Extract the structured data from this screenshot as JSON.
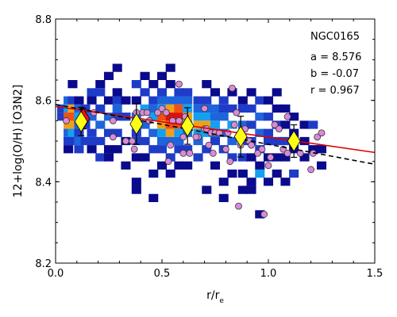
{
  "chart_data": {
    "type": "scatter",
    "xlabel": "r/r",
    "xlabel_sub": "e",
    "ylabel": "12+log(O/H) [O3N2]",
    "xlim": [
      0.0,
      1.5
    ],
    "ylim": [
      8.2,
      8.8
    ],
    "x_ticks": [
      "0.0",
      "0.5",
      "1.0",
      "1.5"
    ],
    "y_ticks": [
      "8.2",
      "8.4",
      "8.6",
      "8.8"
    ],
    "annotations": [
      "NGC0165",
      "a = 8.576",
      "b = -0.07",
      "r = 0.967"
    ],
    "density_cells": [
      [
        0.03,
        8.58,
        2
      ],
      [
        0.03,
        8.56,
        2
      ],
      [
        0.06,
        8.6,
        3
      ],
      [
        0.06,
        8.58,
        4
      ],
      [
        0.06,
        8.56,
        6
      ],
      [
        0.06,
        8.54,
        5
      ],
      [
        0.06,
        8.52,
        3
      ],
      [
        0.06,
        8.5,
        2
      ],
      [
        0.06,
        8.48,
        1
      ],
      [
        0.08,
        8.64,
        1
      ],
      [
        0.08,
        8.6,
        2
      ],
      [
        0.08,
        8.58,
        5
      ],
      [
        0.08,
        8.56,
        6
      ],
      [
        0.08,
        8.54,
        5
      ],
      [
        0.08,
        8.52,
        4
      ],
      [
        0.08,
        8.5,
        2
      ],
      [
        0.11,
        8.6,
        1
      ],
      [
        0.11,
        8.58,
        3
      ],
      [
        0.11,
        8.56,
        4
      ],
      [
        0.11,
        8.54,
        3
      ],
      [
        0.11,
        8.52,
        2
      ],
      [
        0.11,
        8.5,
        3
      ],
      [
        0.11,
        8.48,
        2
      ],
      [
        0.14,
        8.58,
        2
      ],
      [
        0.14,
        8.56,
        3
      ],
      [
        0.14,
        8.54,
        2
      ],
      [
        0.14,
        8.5,
        2
      ],
      [
        0.17,
        8.62,
        2
      ],
      [
        0.17,
        8.6,
        1
      ],
      [
        0.17,
        8.56,
        3
      ],
      [
        0.17,
        8.52,
        2
      ],
      [
        0.17,
        8.5,
        2
      ],
      [
        0.17,
        8.48,
        1
      ],
      [
        0.21,
        8.64,
        1
      ],
      [
        0.21,
        8.62,
        2
      ],
      [
        0.21,
        8.58,
        2
      ],
      [
        0.21,
        8.54,
        3
      ],
      [
        0.21,
        8.5,
        2
      ],
      [
        0.21,
        8.46,
        2
      ],
      [
        0.25,
        8.66,
        1
      ],
      [
        0.25,
        8.6,
        1
      ],
      [
        0.25,
        8.56,
        3
      ],
      [
        0.25,
        8.52,
        2
      ],
      [
        0.25,
        8.48,
        1
      ],
      [
        0.25,
        8.46,
        1
      ],
      [
        0.29,
        8.68,
        1
      ],
      [
        0.29,
        8.62,
        1
      ],
      [
        0.29,
        8.6,
        2
      ],
      [
        0.29,
        8.58,
        3
      ],
      [
        0.29,
        8.56,
        2
      ],
      [
        0.29,
        8.52,
        2
      ],
      [
        0.29,
        8.48,
        1
      ],
      [
        0.33,
        8.6,
        1
      ],
      [
        0.33,
        8.56,
        2
      ],
      [
        0.33,
        8.5,
        1
      ],
      [
        0.33,
        8.44,
        1
      ],
      [
        0.38,
        8.64,
        2
      ],
      [
        0.38,
        8.6,
        1
      ],
      [
        0.38,
        8.56,
        3
      ],
      [
        0.38,
        8.52,
        2
      ],
      [
        0.38,
        8.5,
        2
      ],
      [
        0.38,
        8.46,
        1
      ],
      [
        0.38,
        8.4,
        1
      ],
      [
        0.38,
        8.38,
        1
      ],
      [
        0.42,
        8.66,
        1
      ],
      [
        0.42,
        8.62,
        2
      ],
      [
        0.42,
        8.58,
        4
      ],
      [
        0.42,
        8.54,
        3
      ],
      [
        0.42,
        8.5,
        2
      ],
      [
        0.42,
        8.46,
        1
      ],
      [
        0.46,
        8.64,
        1
      ],
      [
        0.46,
        8.6,
        2
      ],
      [
        0.46,
        8.58,
        3
      ],
      [
        0.46,
        8.56,
        4
      ],
      [
        0.46,
        8.52,
        3
      ],
      [
        0.46,
        8.48,
        2
      ],
      [
        0.46,
        8.42,
        1
      ],
      [
        0.46,
        8.36,
        1
      ],
      [
        0.5,
        8.66,
        1
      ],
      [
        0.5,
        8.62,
        2
      ],
      [
        0.5,
        8.6,
        3
      ],
      [
        0.5,
        8.58,
        4
      ],
      [
        0.5,
        8.56,
        6
      ],
      [
        0.5,
        8.54,
        5
      ],
      [
        0.5,
        8.52,
        4
      ],
      [
        0.5,
        8.5,
        3
      ],
      [
        0.5,
        8.48,
        2
      ],
      [
        0.5,
        8.44,
        1
      ],
      [
        0.54,
        8.68,
        1
      ],
      [
        0.54,
        8.64,
        1
      ],
      [
        0.54,
        8.6,
        3
      ],
      [
        0.54,
        8.58,
        5
      ],
      [
        0.54,
        8.56,
        7
      ],
      [
        0.54,
        8.54,
        6
      ],
      [
        0.54,
        8.52,
        5
      ],
      [
        0.54,
        8.5,
        3
      ],
      [
        0.54,
        8.46,
        2
      ],
      [
        0.54,
        8.42,
        1
      ],
      [
        0.58,
        8.62,
        2
      ],
      [
        0.58,
        8.6,
        3
      ],
      [
        0.58,
        8.58,
        6
      ],
      [
        0.58,
        8.56,
        7
      ],
      [
        0.58,
        8.54,
        6
      ],
      [
        0.58,
        8.52,
        4
      ],
      [
        0.58,
        8.5,
        3
      ],
      [
        0.58,
        8.48,
        2
      ],
      [
        0.58,
        8.44,
        1
      ],
      [
        0.62,
        8.62,
        2
      ],
      [
        0.62,
        8.6,
        3
      ],
      [
        0.62,
        8.58,
        4
      ],
      [
        0.62,
        8.56,
        5
      ],
      [
        0.62,
        8.54,
        4
      ],
      [
        0.62,
        8.52,
        3
      ],
      [
        0.62,
        8.48,
        2
      ],
      [
        0.62,
        8.44,
        1
      ],
      [
        0.67,
        8.6,
        2
      ],
      [
        0.67,
        8.58,
        3
      ],
      [
        0.67,
        8.56,
        4
      ],
      [
        0.67,
        8.54,
        5
      ],
      [
        0.67,
        8.52,
        4
      ],
      [
        0.67,
        8.5,
        3
      ],
      [
        0.67,
        8.46,
        2
      ],
      [
        0.71,
        8.64,
        1
      ],
      [
        0.71,
        8.6,
        2
      ],
      [
        0.71,
        8.58,
        3
      ],
      [
        0.71,
        8.56,
        4
      ],
      [
        0.71,
        8.54,
        5
      ],
      [
        0.71,
        8.52,
        4
      ],
      [
        0.71,
        8.48,
        2
      ],
      [
        0.71,
        8.38,
        1
      ],
      [
        0.75,
        8.62,
        1
      ],
      [
        0.75,
        8.58,
        3
      ],
      [
        0.75,
        8.56,
        3
      ],
      [
        0.75,
        8.54,
        4
      ],
      [
        0.75,
        8.52,
        3
      ],
      [
        0.75,
        8.5,
        2
      ],
      [
        0.75,
        8.44,
        1
      ],
      [
        0.79,
        8.6,
        2
      ],
      [
        0.79,
        8.58,
        2
      ],
      [
        0.79,
        8.56,
        3
      ],
      [
        0.79,
        8.52,
        3
      ],
      [
        0.79,
        8.48,
        2
      ],
      [
        0.79,
        8.4,
        1
      ],
      [
        0.79,
        8.36,
        1
      ],
      [
        0.83,
        8.62,
        1
      ],
      [
        0.83,
        8.58,
        2
      ],
      [
        0.83,
        8.54,
        4
      ],
      [
        0.83,
        8.5,
        3
      ],
      [
        0.83,
        8.46,
        2
      ],
      [
        0.83,
        8.42,
        1
      ],
      [
        0.88,
        8.6,
        1
      ],
      [
        0.88,
        8.58,
        2
      ],
      [
        0.88,
        8.54,
        3
      ],
      [
        0.88,
        8.5,
        2
      ],
      [
        0.88,
        8.46,
        2
      ],
      [
        0.88,
        8.42,
        1
      ],
      [
        0.88,
        8.38,
        1
      ],
      [
        0.92,
        8.62,
        1
      ],
      [
        0.92,
        8.58,
        2
      ],
      [
        0.92,
        8.54,
        2
      ],
      [
        0.92,
        8.5,
        2
      ],
      [
        0.92,
        8.46,
        1
      ],
      [
        0.92,
        8.4,
        1
      ],
      [
        0.92,
        8.38,
        1
      ],
      [
        0.96,
        8.6,
        2
      ],
      [
        0.96,
        8.56,
        3
      ],
      [
        0.96,
        8.52,
        3
      ],
      [
        0.96,
        8.48,
        2
      ],
      [
        0.96,
        8.44,
        1
      ],
      [
        0.96,
        8.42,
        4
      ],
      [
        0.96,
        8.32,
        1
      ],
      [
        1.0,
        8.6,
        1
      ],
      [
        1.0,
        8.56,
        2
      ],
      [
        1.0,
        8.52,
        2
      ],
      [
        1.0,
        8.5,
        2
      ],
      [
        1.0,
        8.46,
        1
      ],
      [
        1.0,
        8.4,
        1
      ],
      [
        1.04,
        8.62,
        1
      ],
      [
        1.04,
        8.58,
        1
      ],
      [
        1.04,
        8.54,
        2
      ],
      [
        1.04,
        8.5,
        2
      ],
      [
        1.04,
        8.46,
        1
      ],
      [
        1.04,
        8.42,
        1
      ],
      [
        1.08,
        8.58,
        1
      ],
      [
        1.08,
        8.54,
        1
      ],
      [
        1.08,
        8.5,
        2
      ],
      [
        1.08,
        8.46,
        1
      ],
      [
        1.08,
        8.4,
        1
      ],
      [
        1.12,
        8.56,
        1
      ],
      [
        1.12,
        8.52,
        1
      ],
      [
        1.12,
        8.48,
        1
      ],
      [
        1.12,
        8.42,
        2
      ],
      [
        1.17,
        8.54,
        1
      ],
      [
        1.17,
        8.5,
        1
      ],
      [
        1.17,
        8.46,
        1
      ],
      [
        1.21,
        8.54,
        2
      ],
      [
        1.21,
        8.48,
        1
      ],
      [
        1.25,
        8.48,
        1
      ],
      [
        1.25,
        8.44,
        1
      ]
    ],
    "points": [
      [
        0.05,
        8.55
      ],
      [
        0.18,
        8.57
      ],
      [
        0.27,
        8.55
      ],
      [
        0.27,
        8.51
      ],
      [
        0.36,
        8.5
      ],
      [
        0.37,
        8.48
      ],
      [
        0.41,
        8.57
      ],
      [
        0.43,
        8.57
      ],
      [
        0.44,
        8.55
      ],
      [
        0.48,
        8.57
      ],
      [
        0.5,
        8.58
      ],
      [
        0.52,
        8.57
      ],
      [
        0.53,
        8.45
      ],
      [
        0.54,
        8.49
      ],
      [
        0.55,
        8.55
      ],
      [
        0.58,
        8.64
      ],
      [
        0.58,
        8.55
      ],
      [
        0.6,
        8.51
      ],
      [
        0.61,
        8.56
      ],
      [
        0.63,
        8.47
      ],
      [
        0.67,
        8.51
      ],
      [
        0.7,
        8.58
      ],
      [
        0.7,
        8.53
      ],
      [
        0.71,
        8.53
      ],
      [
        0.72,
        8.49
      ],
      [
        0.73,
        8.52
      ],
      [
        0.74,
        8.47
      ],
      [
        0.75,
        8.52
      ],
      [
        0.77,
        8.52
      ],
      [
        0.8,
        8.48
      ],
      [
        0.82,
        8.45
      ],
      [
        0.83,
        8.63
      ],
      [
        0.84,
        8.54
      ],
      [
        0.85,
        8.57
      ],
      [
        0.86,
        8.34
      ],
      [
        0.87,
        8.49
      ],
      [
        0.89,
        8.53
      ],
      [
        0.91,
        8.5
      ],
      [
        0.92,
        8.49
      ],
      [
        0.95,
        8.47
      ],
      [
        0.97,
        8.48
      ],
      [
        0.98,
        8.32
      ],
      [
        1.0,
        8.44
      ],
      [
        1.01,
        8.46
      ],
      [
        1.03,
        8.54
      ],
      [
        1.05,
        8.53
      ],
      [
        1.07,
        8.48
      ],
      [
        1.09,
        8.56
      ],
      [
        1.09,
        8.47
      ],
      [
        1.15,
        8.47
      ],
      [
        1.2,
        8.43
      ],
      [
        1.21,
        8.47
      ],
      [
        1.23,
        8.51
      ],
      [
        1.25,
        8.52
      ],
      [
        0.6,
        8.47
      ],
      [
        0.66,
        8.51
      ],
      [
        0.81,
        8.52
      ],
      [
        0.33,
        8.5
      ],
      [
        0.38,
        8.57
      ]
    ],
    "red_bins": [
      [
        0.13,
        8.555,
        0.025
      ]
    ],
    "yellow_bins": [
      [
        0.12,
        8.548,
        0.035
      ],
      [
        0.38,
        8.542,
        0.05
      ],
      [
        0.62,
        8.537,
        0.045
      ],
      [
        0.87,
        8.511,
        0.05
      ],
      [
        1.12,
        8.5,
        0.04
      ]
    ],
    "red_line": [
      [
        0.0,
        8.585
      ],
      [
        1.5,
        8.472
      ]
    ],
    "black_dashed_line": [
      [
        0.0,
        8.59
      ],
      [
        1.5,
        8.443
      ]
    ]
  }
}
